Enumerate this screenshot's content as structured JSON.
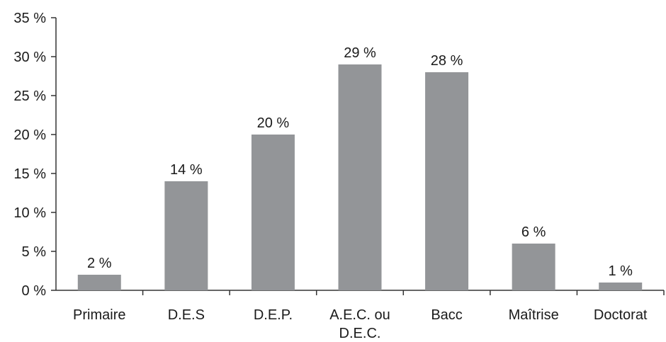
{
  "chart_data": {
    "type": "bar",
    "categories": [
      "Primaire",
      "D.E.S",
      "D.E.P.",
      "A.E.C. ou D.E.C.",
      "Bacc",
      "Maîtrise",
      "Doctorat"
    ],
    "category_label_lines": [
      [
        "Primaire"
      ],
      [
        "D.E.S"
      ],
      [
        "D.E.P."
      ],
      [
        "A.E.C. ou",
        "D.E.C."
      ],
      [
        "Bacc"
      ],
      [
        "Maîtrise"
      ],
      [
        "Doctorat"
      ]
    ],
    "values": [
      2,
      14,
      20,
      29,
      28,
      6,
      1
    ],
    "data_labels": [
      "2 %",
      "14 %",
      "20 %",
      "29 %",
      "28 %",
      "6 %",
      "1 %"
    ],
    "yticks": [
      0,
      5,
      10,
      15,
      20,
      25,
      30,
      35
    ],
    "ytick_labels": [
      "0 %",
      "5 %",
      "10 %",
      "15 %",
      "20 %",
      "25 %",
      "30 %",
      "35 %"
    ],
    "ylim": [
      0,
      35
    ],
    "title": "",
    "xlabel": "",
    "ylabel": "",
    "grid": false,
    "legend": "none",
    "colors": {
      "bar": "#939598",
      "axis": "#333333",
      "text": "#1a1a1a"
    }
  }
}
